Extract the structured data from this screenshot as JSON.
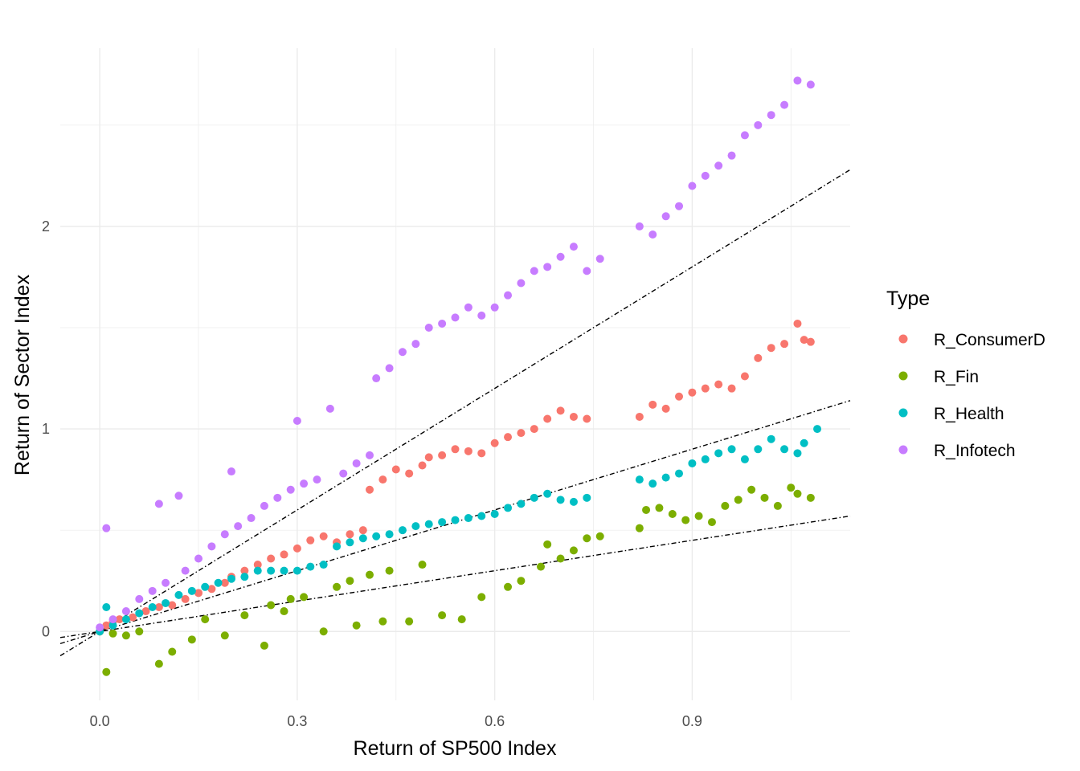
{
  "chart_data": {
    "type": "scatter",
    "xlabel": "Return of SP500 Index",
    "ylabel": "Return of Sector Index",
    "xlim": [
      -0.06,
      1.14
    ],
    "ylim": [
      -0.34,
      2.88
    ],
    "x_ticks": [
      {
        "value": 0.0,
        "label": "0.0"
      },
      {
        "value": 0.3,
        "label": "0.3"
      },
      {
        "value": 0.6,
        "label": "0.6"
      },
      {
        "value": 0.9,
        "label": "0.9"
      }
    ],
    "y_ticks": [
      {
        "value": 0,
        "label": "0"
      },
      {
        "value": 1,
        "label": "1"
      },
      {
        "value": 2,
        "label": "2"
      }
    ],
    "grid": true,
    "legend": {
      "title": "Type",
      "placement": "right",
      "entries": [
        "R_ConsumerD",
        "R_Fin",
        "R_Health",
        "R_Infotech"
      ]
    },
    "series": [
      {
        "name": "R_ConsumerD",
        "color": "#F8766D",
        "points": [
          [
            0.0,
            0.0
          ],
          [
            0.01,
            0.03
          ],
          [
            0.02,
            0.05
          ],
          [
            0.03,
            0.06
          ],
          [
            0.05,
            0.07
          ],
          [
            0.07,
            0.1
          ],
          [
            0.09,
            0.12
          ],
          [
            0.11,
            0.13
          ],
          [
            0.13,
            0.16
          ],
          [
            0.15,
            0.19
          ],
          [
            0.17,
            0.21
          ],
          [
            0.19,
            0.24
          ],
          [
            0.2,
            0.27
          ],
          [
            0.22,
            0.3
          ],
          [
            0.24,
            0.33
          ],
          [
            0.26,
            0.36
          ],
          [
            0.28,
            0.38
          ],
          [
            0.3,
            0.41
          ],
          [
            0.32,
            0.45
          ],
          [
            0.34,
            0.47
          ],
          [
            0.36,
            0.44
          ],
          [
            0.38,
            0.48
          ],
          [
            0.4,
            0.5
          ],
          [
            0.41,
            0.7
          ],
          [
            0.43,
            0.75
          ],
          [
            0.45,
            0.8
          ],
          [
            0.47,
            0.78
          ],
          [
            0.49,
            0.82
          ],
          [
            0.5,
            0.86
          ],
          [
            0.52,
            0.87
          ],
          [
            0.54,
            0.9
          ],
          [
            0.56,
            0.89
          ],
          [
            0.58,
            0.88
          ],
          [
            0.6,
            0.93
          ],
          [
            0.62,
            0.96
          ],
          [
            0.64,
            0.98
          ],
          [
            0.66,
            1.0
          ],
          [
            0.68,
            1.05
          ],
          [
            0.7,
            1.09
          ],
          [
            0.72,
            1.06
          ],
          [
            0.74,
            1.05
          ],
          [
            0.82,
            1.06
          ],
          [
            0.84,
            1.12
          ],
          [
            0.86,
            1.1
          ],
          [
            0.88,
            1.16
          ],
          [
            0.9,
            1.18
          ],
          [
            0.92,
            1.2
          ],
          [
            0.94,
            1.22
          ],
          [
            0.96,
            1.2
          ],
          [
            0.98,
            1.26
          ],
          [
            1.0,
            1.35
          ],
          [
            1.02,
            1.4
          ],
          [
            1.04,
            1.42
          ],
          [
            1.06,
            1.52
          ],
          [
            1.07,
            1.44
          ],
          [
            1.08,
            1.43
          ]
        ]
      },
      {
        "name": "R_Fin",
        "color": "#7CAE00",
        "points": [
          [
            0.0,
            0.0
          ],
          [
            0.01,
            -0.2
          ],
          [
            0.02,
            -0.01
          ],
          [
            0.04,
            -0.02
          ],
          [
            0.06,
            0.0
          ],
          [
            0.09,
            -0.16
          ],
          [
            0.11,
            -0.1
          ],
          [
            0.14,
            -0.04
          ],
          [
            0.16,
            0.06
          ],
          [
            0.19,
            -0.02
          ],
          [
            0.22,
            0.08
          ],
          [
            0.25,
            -0.07
          ],
          [
            0.26,
            0.13
          ],
          [
            0.28,
            0.1
          ],
          [
            0.29,
            0.16
          ],
          [
            0.31,
            0.17
          ],
          [
            0.34,
            0.0
          ],
          [
            0.36,
            0.22
          ],
          [
            0.38,
            0.25
          ],
          [
            0.39,
            0.03
          ],
          [
            0.41,
            0.28
          ],
          [
            0.43,
            0.05
          ],
          [
            0.44,
            0.3
          ],
          [
            0.47,
            0.05
          ],
          [
            0.49,
            0.33
          ],
          [
            0.52,
            0.08
          ],
          [
            0.55,
            0.06
          ],
          [
            0.58,
            0.17
          ],
          [
            0.62,
            0.22
          ],
          [
            0.64,
            0.25
          ],
          [
            0.67,
            0.32
          ],
          [
            0.68,
            0.43
          ],
          [
            0.7,
            0.36
          ],
          [
            0.72,
            0.4
          ],
          [
            0.74,
            0.46
          ],
          [
            0.76,
            0.47
          ],
          [
            0.82,
            0.51
          ],
          [
            0.83,
            0.6
          ],
          [
            0.85,
            0.61
          ],
          [
            0.87,
            0.58
          ],
          [
            0.89,
            0.55
          ],
          [
            0.91,
            0.57
          ],
          [
            0.93,
            0.54
          ],
          [
            0.95,
            0.62
          ],
          [
            0.97,
            0.65
          ],
          [
            0.99,
            0.7
          ],
          [
            1.01,
            0.66
          ],
          [
            1.03,
            0.62
          ],
          [
            1.05,
            0.71
          ],
          [
            1.06,
            0.68
          ],
          [
            1.08,
            0.66
          ]
        ]
      },
      {
        "name": "R_Health",
        "color": "#00BFC4",
        "points": [
          [
            0.0,
            0.0
          ],
          [
            0.01,
            0.12
          ],
          [
            0.02,
            0.03
          ],
          [
            0.04,
            0.06
          ],
          [
            0.06,
            0.09
          ],
          [
            0.08,
            0.12
          ],
          [
            0.1,
            0.14
          ],
          [
            0.12,
            0.18
          ],
          [
            0.14,
            0.2
          ],
          [
            0.16,
            0.22
          ],
          [
            0.18,
            0.24
          ],
          [
            0.2,
            0.26
          ],
          [
            0.22,
            0.27
          ],
          [
            0.24,
            0.3
          ],
          [
            0.26,
            0.3
          ],
          [
            0.28,
            0.3
          ],
          [
            0.3,
            0.3
          ],
          [
            0.32,
            0.32
          ],
          [
            0.34,
            0.33
          ],
          [
            0.36,
            0.42
          ],
          [
            0.38,
            0.44
          ],
          [
            0.4,
            0.46
          ],
          [
            0.42,
            0.47
          ],
          [
            0.44,
            0.48
          ],
          [
            0.46,
            0.5
          ],
          [
            0.48,
            0.52
          ],
          [
            0.5,
            0.53
          ],
          [
            0.52,
            0.54
          ],
          [
            0.54,
            0.55
          ],
          [
            0.56,
            0.56
          ],
          [
            0.58,
            0.57
          ],
          [
            0.6,
            0.58
          ],
          [
            0.62,
            0.61
          ],
          [
            0.64,
            0.63
          ],
          [
            0.66,
            0.66
          ],
          [
            0.68,
            0.68
          ],
          [
            0.7,
            0.65
          ],
          [
            0.72,
            0.64
          ],
          [
            0.74,
            0.66
          ],
          [
            0.82,
            0.75
          ],
          [
            0.84,
            0.73
          ],
          [
            0.86,
            0.76
          ],
          [
            0.88,
            0.78
          ],
          [
            0.9,
            0.83
          ],
          [
            0.92,
            0.85
          ],
          [
            0.94,
            0.88
          ],
          [
            0.96,
            0.9
          ],
          [
            0.98,
            0.85
          ],
          [
            1.0,
            0.9
          ],
          [
            1.02,
            0.95
          ],
          [
            1.04,
            0.9
          ],
          [
            1.06,
            0.88
          ],
          [
            1.07,
            0.93
          ],
          [
            1.09,
            1.0
          ]
        ]
      },
      {
        "name": "R_Infotech",
        "color": "#C77CFF",
        "points": [
          [
            0.0,
            0.02
          ],
          [
            0.01,
            0.51
          ],
          [
            0.02,
            0.06
          ],
          [
            0.04,
            0.1
          ],
          [
            0.06,
            0.16
          ],
          [
            0.08,
            0.2
          ],
          [
            0.09,
            0.63
          ],
          [
            0.1,
            0.24
          ],
          [
            0.12,
            0.67
          ],
          [
            0.13,
            0.3
          ],
          [
            0.15,
            0.36
          ],
          [
            0.17,
            0.42
          ],
          [
            0.19,
            0.48
          ],
          [
            0.2,
            0.79
          ],
          [
            0.21,
            0.52
          ],
          [
            0.23,
            0.56
          ],
          [
            0.25,
            0.62
          ],
          [
            0.27,
            0.66
          ],
          [
            0.29,
            0.7
          ],
          [
            0.3,
            1.04
          ],
          [
            0.31,
            0.73
          ],
          [
            0.33,
            0.75
          ],
          [
            0.35,
            1.1
          ],
          [
            0.37,
            0.78
          ],
          [
            0.39,
            0.83
          ],
          [
            0.41,
            0.87
          ],
          [
            0.42,
            1.25
          ],
          [
            0.44,
            1.3
          ],
          [
            0.46,
            1.38
          ],
          [
            0.48,
            1.42
          ],
          [
            0.5,
            1.5
          ],
          [
            0.52,
            1.52
          ],
          [
            0.54,
            1.55
          ],
          [
            0.56,
            1.6
          ],
          [
            0.58,
            1.56
          ],
          [
            0.6,
            1.6
          ],
          [
            0.62,
            1.66
          ],
          [
            0.64,
            1.72
          ],
          [
            0.66,
            1.78
          ],
          [
            0.68,
            1.8
          ],
          [
            0.7,
            1.85
          ],
          [
            0.72,
            1.9
          ],
          [
            0.74,
            1.78
          ],
          [
            0.76,
            1.84
          ],
          [
            0.82,
            2.0
          ],
          [
            0.84,
            1.96
          ],
          [
            0.86,
            2.05
          ],
          [
            0.88,
            2.1
          ],
          [
            0.9,
            2.2
          ],
          [
            0.92,
            2.25
          ],
          [
            0.94,
            2.3
          ],
          [
            0.96,
            2.35
          ],
          [
            0.98,
            2.45
          ],
          [
            1.0,
            2.5
          ],
          [
            1.02,
            2.55
          ],
          [
            1.04,
            2.6
          ],
          [
            1.06,
            2.72
          ],
          [
            1.08,
            2.7
          ]
        ]
      }
    ],
    "reference_lines": [
      {
        "slope": 2.0,
        "intercept": 0.0
      },
      {
        "slope": 1.0,
        "intercept": 0.0
      },
      {
        "slope": 0.5,
        "intercept": 0.0
      }
    ]
  }
}
